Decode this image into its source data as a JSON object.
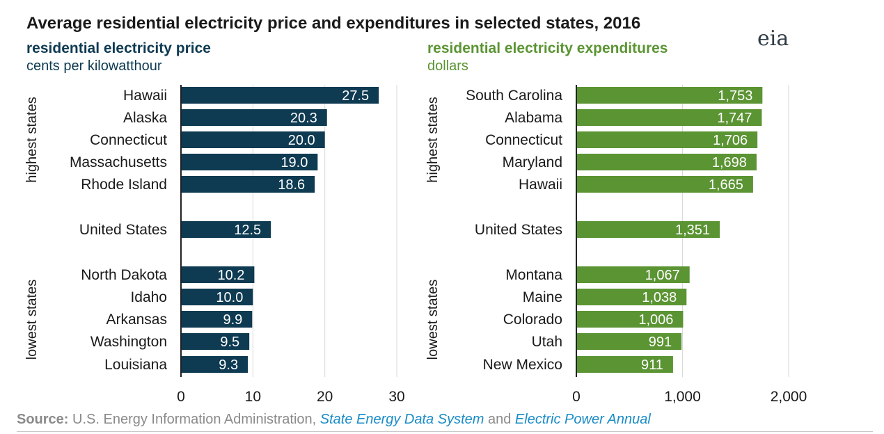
{
  "title": "Average residential electricity price and expenditures in selected states, 2016",
  "logo_text": "eia",
  "colors": {
    "left": "#0e3a52",
    "right": "#5b9433"
  },
  "chart_data": [
    {
      "type": "bar",
      "orientation": "horizontal",
      "title": "residential electricity price",
      "unit": "cents per kilowatthour",
      "group_labels": [
        "highest states",
        "lowest states"
      ],
      "categories": [
        "Hawaii",
        "Alaska",
        "Connecticut",
        "Massachusetts",
        "Rhode Island",
        "United States",
        "North Dakota",
        "Idaho",
        "Arkansas",
        "Washington",
        "Louisiana"
      ],
      "values": [
        27.5,
        20.3,
        20.0,
        19.0,
        18.6,
        12.5,
        10.2,
        10.0,
        9.9,
        9.5,
        9.3
      ],
      "value_labels": [
        "27.5",
        "20.3",
        "20.0",
        "19.0",
        "18.6",
        "12.5",
        "10.2",
        "10.0",
        "9.9",
        "9.5",
        "9.3"
      ],
      "xlim": [
        0,
        30
      ],
      "ticks": [
        0,
        10,
        20,
        30
      ],
      "tick_labels": [
        "0",
        "10",
        "20",
        "30"
      ]
    },
    {
      "type": "bar",
      "orientation": "horizontal",
      "title": "residential electricity expenditures",
      "unit": "dollars",
      "group_labels": [
        "highest states",
        "lowest states"
      ],
      "categories": [
        "South Carolina",
        "Alabama",
        "Connecticut",
        "Maryland",
        "Hawaii",
        "United States",
        "Montana",
        "Maine",
        "Colorado",
        "Utah",
        "New Mexico"
      ],
      "values": [
        1753,
        1747,
        1706,
        1698,
        1665,
        1351,
        1067,
        1038,
        1006,
        991,
        911
      ],
      "value_labels": [
        "1,753",
        "1,747",
        "1,706",
        "1,698",
        "1,665",
        "1,351",
        "1,067",
        "1,038",
        "1,006",
        "991",
        "911"
      ],
      "xlim": [
        0,
        2000
      ],
      "ticks": [
        0,
        1000,
        2000
      ],
      "tick_labels": [
        "0",
        "1,000",
        "2,000"
      ]
    }
  ],
  "source": {
    "label": "Source:",
    "text1": "U.S. Energy Information Administration,",
    "link1": "State Energy Data System",
    "text2": "and",
    "link2": "Electric Power Annual"
  }
}
